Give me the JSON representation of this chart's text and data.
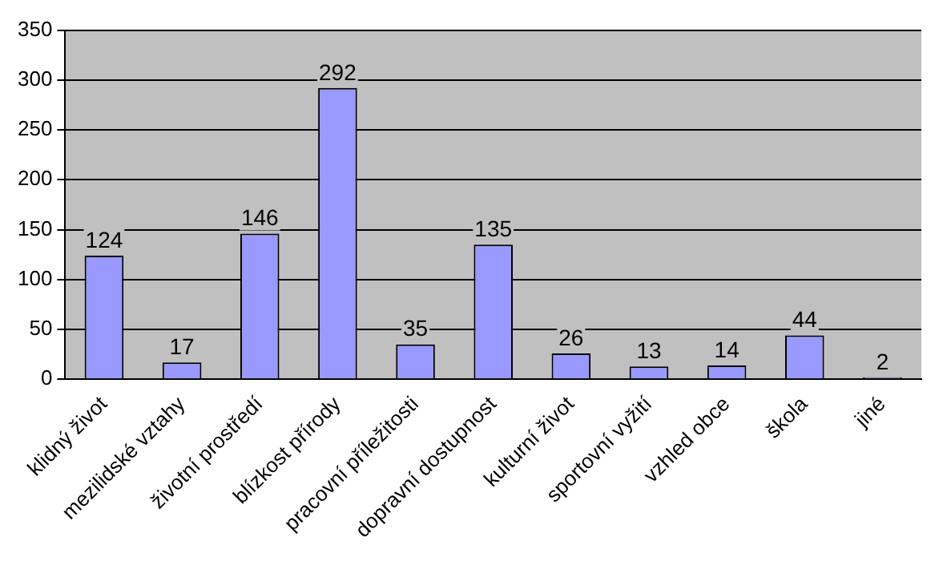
{
  "chart_data": {
    "type": "bar",
    "categories": [
      "klidný život",
      "mezilidské vztahy",
      "životní prostředí",
      "blízkost přírody",
      "pracovní příležitosti",
      "dopravní dostupnost",
      "kulturní život",
      "sportovní vyžití",
      "vzhled obce",
      "škola",
      "jiné"
    ],
    "values": [
      124,
      17,
      146,
      292,
      35,
      135,
      26,
      13,
      14,
      44,
      2
    ],
    "color": "#9999ff",
    "ylim": [
      0,
      350
    ],
    "yticks": [
      0,
      50,
      100,
      150,
      200,
      250,
      300,
      350
    ],
    "grid": "y",
    "data_labels": true,
    "legend": false
  }
}
